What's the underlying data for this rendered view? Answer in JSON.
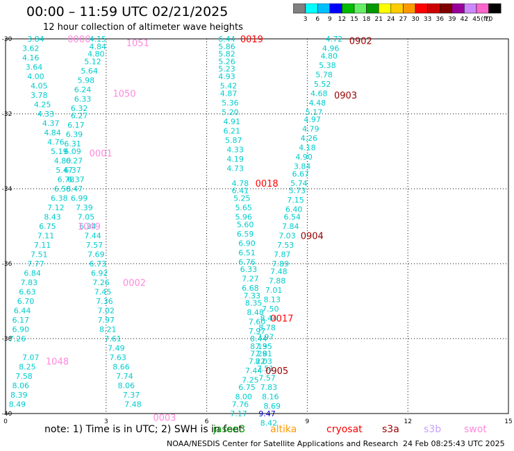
{
  "header": {
    "title": "00:00 – 11:59 UTC 02/21/2025",
    "subtitle": "12 hour collection of altimeter wave heights"
  },
  "colorbar": {
    "unit_label": "(ft)",
    "tick_labels": [
      "3",
      "6",
      "9",
      "12",
      "15",
      "18",
      "21",
      "24",
      "27",
      "30",
      "33",
      "36",
      "39",
      "42",
      "45",
      "70"
    ],
    "colors": [
      "#808080",
      "#00ffff",
      "#00bfff",
      "#0000ff",
      "#00bb00",
      "#66ee66",
      "#009900",
      "#ffff00",
      "#ffcc00",
      "#ff9900",
      "#ff0000",
      "#cc0000",
      "#800000",
      "#990099",
      "#cc88ff",
      "#ff66cc",
      "#000000"
    ]
  },
  "footer": {
    "note": "note: 1) Time is in UTC; 2) SWH is in feet",
    "satellites": [
      {
        "name": "jason3",
        "color": "#009900"
      },
      {
        "name": "altika",
        "color": "#ff9900"
      },
      {
        "name": "cryosat",
        "color": "#ff0000"
      },
      {
        "name": "s3a",
        "color": "#990000"
      },
      {
        "name": "s3b",
        "color": "#c8a0ff"
      },
      {
        "name": "swot",
        "color": "#ff88dd"
      }
    ],
    "credit": "NOAA/NESDIS Center for Satellite Applications and Research",
    "timestamp": "24 Feb 08:25:43 UTC 2025"
  },
  "chart_data": {
    "type": "scatter",
    "xlim": [
      0,
      15
    ],
    "ylim": [
      -40,
      -30
    ],
    "x_ticks": [
      "0",
      "3",
      "6",
      "9",
      "12",
      "15"
    ],
    "y_ticks": [
      "-30",
      "-32",
      "-34",
      "-36",
      "-38",
      "-40"
    ],
    "grid": true,
    "tracks": [
      {
        "series": "swot",
        "color": "#00cccc",
        "labels": [
          {
            "x": 0.9,
            "y": -30.0,
            "v": "3.84"
          },
          {
            "x": 0.75,
            "y": -30.25,
            "v": "3.62"
          },
          {
            "x": 0.75,
            "y": -30.5,
            "v": "4.16"
          },
          {
            "x": 0.85,
            "y": -30.75,
            "v": "3.64"
          },
          {
            "x": 0.9,
            "y": -31.0,
            "v": "4.00"
          },
          {
            "x": 1.0,
            "y": -31.25,
            "v": "4.05"
          },
          {
            "x": 1.0,
            "y": -31.5,
            "v": "3.78"
          },
          {
            "x": 1.1,
            "y": -31.75,
            "v": "4.25"
          },
          {
            "x": 1.2,
            "y": -32.0,
            "v": "4.33"
          },
          {
            "x": 1.35,
            "y": -32.25,
            "v": "4.37"
          },
          {
            "x": 1.4,
            "y": -32.5,
            "v": "4.84"
          },
          {
            "x": 1.5,
            "y": -32.75,
            "v": "4.76"
          },
          {
            "x": 1.6,
            "y": -33.0,
            "v": "5.19"
          },
          {
            "x": 1.7,
            "y": -33.25,
            "v": "4.80"
          },
          {
            "x": 1.75,
            "y": -33.5,
            "v": "5.47"
          },
          {
            "x": 1.8,
            "y": -33.75,
            "v": "6.78"
          },
          {
            "x": 1.7,
            "y": -34.0,
            "v": "6.58"
          },
          {
            "x": 1.6,
            "y": -34.25,
            "v": "6.38"
          },
          {
            "x": 1.5,
            "y": -34.5,
            "v": "7.12"
          },
          {
            "x": 1.4,
            "y": -34.75,
            "v": "8.43"
          },
          {
            "x": 1.25,
            "y": -35.0,
            "v": "6.75"
          },
          {
            "x": 1.2,
            "y": -35.25,
            "v": "7.11"
          },
          {
            "x": 1.1,
            "y": -35.5,
            "v": "7.11"
          },
          {
            "x": 1.0,
            "y": -35.75,
            "v": "7.51"
          },
          {
            "x": 0.9,
            "y": -36.0,
            "v": "7.77"
          },
          {
            "x": 0.8,
            "y": -36.25,
            "v": "6.84"
          },
          {
            "x": 0.7,
            "y": -36.5,
            "v": "7.83"
          },
          {
            "x": 0.65,
            "y": -36.75,
            "v": "6.63"
          },
          {
            "x": 0.6,
            "y": -37.0,
            "v": "6.70"
          },
          {
            "x": 0.5,
            "y": -37.25,
            "v": "6.44"
          },
          {
            "x": 0.45,
            "y": -37.5,
            "v": "6.17"
          },
          {
            "x": 0.45,
            "y": -37.75,
            "v": "6.90"
          },
          {
            "x": 0.35,
            "y": -38.0,
            "v": "7.26"
          },
          {
            "x": 0.75,
            "y": -38.5,
            "v": "7.07"
          },
          {
            "x": 0.65,
            "y": -38.75,
            "v": "8.25"
          },
          {
            "x": 0.55,
            "y": -39.0,
            "v": "7.58"
          },
          {
            "x": 0.45,
            "y": -39.25,
            "v": "8.06"
          },
          {
            "x": 0.4,
            "y": -39.5,
            "v": "8.39"
          },
          {
            "x": 0.35,
            "y": -39.75,
            "v": "8.49"
          }
        ]
      },
      {
        "series": "swot",
        "color": "#00cccc",
        "labels": [
          {
            "x": 2.75,
            "y": -30.0,
            "v": "4.15"
          },
          {
            "x": 2.75,
            "y": -30.2,
            "v": "4.84"
          },
          {
            "x": 2.7,
            "y": -30.4,
            "v": "4.80"
          },
          {
            "x": 2.6,
            "y": -30.6,
            "v": "5.12"
          },
          {
            "x": 2.5,
            "y": -30.85,
            "v": "5.64"
          },
          {
            "x": 2.4,
            "y": -31.1,
            "v": "5.98"
          },
          {
            "x": 2.3,
            "y": -31.35,
            "v": "6.24"
          },
          {
            "x": 2.3,
            "y": -31.6,
            "v": "6.33"
          },
          {
            "x": 2.2,
            "y": -31.85,
            "v": "6.32"
          },
          {
            "x": 2.2,
            "y": -32.05,
            "v": "6.27"
          },
          {
            "x": 2.1,
            "y": -32.3,
            "v": "6.17"
          },
          {
            "x": 2.05,
            "y": -32.55,
            "v": "6.39"
          },
          {
            "x": 2.0,
            "y": -32.8,
            "v": "6.31"
          },
          {
            "x": 2.0,
            "y": -33.0,
            "v": "6.09"
          },
          {
            "x": 2.05,
            "y": -33.25,
            "v": "6.27"
          },
          {
            "x": 2.0,
            "y": -33.5,
            "v": "6.37"
          },
          {
            "x": 2.1,
            "y": -33.75,
            "v": "6.37"
          },
          {
            "x": 2.05,
            "y": -34.0,
            "v": "6.47"
          },
          {
            "x": 2.2,
            "y": -34.25,
            "v": "6.99"
          },
          {
            "x": 2.35,
            "y": -34.5,
            "v": "7.39"
          },
          {
            "x": 2.4,
            "y": -34.75,
            "v": "7.05"
          },
          {
            "x": 2.45,
            "y": -35.0,
            "v": "6.24"
          },
          {
            "x": 2.6,
            "y": -35.25,
            "v": "7.44"
          },
          {
            "x": 2.65,
            "y": -35.5,
            "v": "7.57"
          },
          {
            "x": 2.7,
            "y": -35.75,
            "v": "7.69"
          },
          {
            "x": 2.75,
            "y": -36.0,
            "v": "6.73"
          },
          {
            "x": 2.8,
            "y": -36.25,
            "v": "6.92"
          },
          {
            "x": 2.85,
            "y": -36.5,
            "v": "7.26"
          },
          {
            "x": 2.9,
            "y": -36.75,
            "v": "7.45"
          },
          {
            "x": 2.95,
            "y": -37.0,
            "v": "7.36"
          },
          {
            "x": 3.0,
            "y": -37.25,
            "v": "7.02"
          },
          {
            "x": 3.0,
            "y": -37.5,
            "v": "7.97"
          },
          {
            "x": 3.05,
            "y": -37.75,
            "v": "8.21"
          },
          {
            "x": 3.2,
            "y": -38.0,
            "v": "7.61"
          },
          {
            "x": 3.3,
            "y": -38.25,
            "v": "7.49"
          },
          {
            "x": 3.35,
            "y": -38.5,
            "v": "7.63"
          },
          {
            "x": 3.45,
            "y": -38.75,
            "v": "8.66"
          },
          {
            "x": 3.55,
            "y": -39.0,
            "v": "7.74"
          },
          {
            "x": 3.6,
            "y": -39.25,
            "v": "8.06"
          },
          {
            "x": 3.75,
            "y": -39.5,
            "v": "7.37"
          },
          {
            "x": 3.8,
            "y": -39.75,
            "v": "7.48"
          }
        ]
      },
      {
        "series": "cryosat",
        "color": "#00cccc",
        "labels": [
          {
            "x": 6.6,
            "y": -30.0,
            "v": "6.44"
          },
          {
            "x": 6.6,
            "y": -30.2,
            "v": "5.86"
          },
          {
            "x": 6.6,
            "y": -30.4,
            "v": "5.82"
          },
          {
            "x": 6.6,
            "y": -30.6,
            "v": "5.26"
          },
          {
            "x": 6.6,
            "y": -30.8,
            "v": "5.23"
          },
          {
            "x": 6.6,
            "y": -31.0,
            "v": "4.93"
          },
          {
            "x": 6.65,
            "y": -31.25,
            "v": "5.42"
          },
          {
            "x": 6.65,
            "y": -31.45,
            "v": "4.87"
          },
          {
            "x": 6.7,
            "y": -31.7,
            "v": "5.36"
          },
          {
            "x": 6.7,
            "y": -31.95,
            "v": "5.20"
          },
          {
            "x": 6.75,
            "y": -32.2,
            "v": "4.91"
          },
          {
            "x": 6.75,
            "y": -32.45,
            "v": "6.21"
          },
          {
            "x": 6.8,
            "y": -32.7,
            "v": "5.87"
          },
          {
            "x": 6.85,
            "y": -32.95,
            "v": "4.33"
          },
          {
            "x": 6.85,
            "y": -33.2,
            "v": "4.19"
          },
          {
            "x": 6.85,
            "y": -33.45,
            "v": "4.73"
          },
          {
            "x": 7.0,
            "y": -33.85,
            "v": "4.78"
          },
          {
            "x": 7.0,
            "y": -34.05,
            "v": "6.41"
          },
          {
            "x": 7.05,
            "y": -34.25,
            "v": "5.25"
          },
          {
            "x": 7.1,
            "y": -34.5,
            "v": "5.65"
          },
          {
            "x": 7.1,
            "y": -34.75,
            "v": "5.96"
          },
          {
            "x": 7.15,
            "y": -34.95,
            "v": "5.60"
          },
          {
            "x": 7.15,
            "y": -35.2,
            "v": "6.59"
          },
          {
            "x": 7.2,
            "y": -35.45,
            "v": "6.90"
          },
          {
            "x": 7.2,
            "y": -35.7,
            "v": "6.51"
          },
          {
            "x": 7.2,
            "y": -35.95,
            "v": "6.76"
          },
          {
            "x": 7.25,
            "y": -36.15,
            "v": "6.33"
          },
          {
            "x": 7.3,
            "y": -36.4,
            "v": "7.27"
          },
          {
            "x": 7.3,
            "y": -36.65,
            "v": "6.68"
          },
          {
            "x": 7.35,
            "y": -36.85,
            "v": "7.33"
          },
          {
            "x": 7.4,
            "y": -37.05,
            "v": "8.35"
          },
          {
            "x": 7.45,
            "y": -37.3,
            "v": "8.48"
          },
          {
            "x": 7.5,
            "y": -37.55,
            "v": "7.60"
          },
          {
            "x": 7.5,
            "y": -37.8,
            "v": "7.97"
          },
          {
            "x": 7.55,
            "y": -38.0,
            "v": "8.44"
          },
          {
            "x": 7.55,
            "y": -38.2,
            "v": "8.13"
          },
          {
            "x": 7.55,
            "y": -38.4,
            "v": "7.29"
          },
          {
            "x": 7.5,
            "y": -38.6,
            "v": "7.22"
          },
          {
            "x": 7.4,
            "y": -38.85,
            "v": "7.44"
          },
          {
            "x": 7.3,
            "y": -39.1,
            "v": "7.25"
          },
          {
            "x": 7.2,
            "y": -39.3,
            "v": "6.75"
          },
          {
            "x": 7.1,
            "y": -39.55,
            "v": "8.00"
          },
          {
            "x": 7.0,
            "y": -39.75,
            "v": "7.76"
          },
          {
            "x": 6.95,
            "y": -40.0,
            "v": "7.17"
          }
        ]
      },
      {
        "series": "s3a",
        "color": "#00cccc",
        "labels": [
          {
            "x": 9.8,
            "y": -30.0,
            "v": "4.72"
          },
          {
            "x": 9.7,
            "y": -30.25,
            "v": "4.96"
          },
          {
            "x": 9.65,
            "y": -30.45,
            "v": "4.80"
          },
          {
            "x": 9.6,
            "y": -30.7,
            "v": "5.38"
          },
          {
            "x": 9.5,
            "y": -30.95,
            "v": "5.78"
          },
          {
            "x": 9.45,
            "y": -31.2,
            "v": "5.52"
          },
          {
            "x": 9.35,
            "y": -31.45,
            "v": "4.68"
          },
          {
            "x": 9.3,
            "y": -31.7,
            "v": "4.48"
          },
          {
            "x": 9.2,
            "y": -31.95,
            "v": "5.17"
          },
          {
            "x": 9.15,
            "y": -32.15,
            "v": "4.97"
          },
          {
            "x": 9.1,
            "y": -32.4,
            "v": "4.79"
          },
          {
            "x": 9.05,
            "y": -32.65,
            "v": "4.26"
          },
          {
            "x": 9.0,
            "y": -32.9,
            "v": "4.18"
          },
          {
            "x": 8.9,
            "y": -33.15,
            "v": "4.90"
          },
          {
            "x": 8.85,
            "y": -33.4,
            "v": "3.84"
          },
          {
            "x": 8.8,
            "y": -33.6,
            "v": "6.67"
          },
          {
            "x": 8.75,
            "y": -33.85,
            "v": "5.74"
          },
          {
            "x": 8.7,
            "y": -34.05,
            "v": "5.73"
          },
          {
            "x": 8.65,
            "y": -34.3,
            "v": "7.15"
          },
          {
            "x": 8.6,
            "y": -34.55,
            "v": "6.40"
          },
          {
            "x": 8.55,
            "y": -34.75,
            "v": "6.54"
          },
          {
            "x": 8.5,
            "y": -35.0,
            "v": "7.84"
          },
          {
            "x": 8.4,
            "y": -35.25,
            "v": "7.03"
          },
          {
            "x": 8.35,
            "y": -35.5,
            "v": "7.53"
          },
          {
            "x": 8.25,
            "y": -35.75,
            "v": "7.87"
          },
          {
            "x": 8.2,
            "y": -36.0,
            "v": "7.89"
          },
          {
            "x": 8.15,
            "y": -36.2,
            "v": "7.48"
          },
          {
            "x": 8.1,
            "y": -36.45,
            "v": "7.88"
          },
          {
            "x": 8.0,
            "y": -36.7,
            "v": "7.01"
          },
          {
            "x": 7.95,
            "y": -36.95,
            "v": "8.13"
          },
          {
            "x": 7.9,
            "y": -37.2,
            "v": "7.50"
          },
          {
            "x": 7.85,
            "y": -37.45,
            "v": "8.44"
          },
          {
            "x": 7.8,
            "y": -37.7,
            "v": "8.78"
          },
          {
            "x": 7.75,
            "y": -37.95,
            "v": "7.97"
          },
          {
            "x": 7.7,
            "y": -38.2,
            "v": "7.95"
          },
          {
            "x": 7.7,
            "y": -38.4,
            "v": "7.81"
          },
          {
            "x": 7.7,
            "y": -38.6,
            "v": "8.03"
          },
          {
            "x": 7.75,
            "y": -38.8,
            "v": "7.51"
          },
          {
            "x": 7.8,
            "y": -39.05,
            "v": "7.57"
          },
          {
            "x": 7.85,
            "y": -39.3,
            "v": "7.83"
          },
          {
            "x": 7.9,
            "y": -39.55,
            "v": "8.16"
          },
          {
            "x": 7.95,
            "y": -39.8,
            "v": "8.69"
          },
          {
            "x": 7.85,
            "y": -40.25,
            "v": "8.42"
          }
        ]
      },
      {
        "series": "cryosat",
        "color": "#0000cc",
        "labels": [
          {
            "x": 7.8,
            "y": -40.0,
            "v": "9.47"
          }
        ]
      }
    ],
    "time_labels": [
      {
        "x": 1.85,
        "y": -30.0,
        "v": "0000",
        "color": "#ff88dd"
      },
      {
        "x": 3.6,
        "y": -30.1,
        "v": "1051",
        "color": "#ff88dd"
      },
      {
        "x": 3.2,
        "y": -31.45,
        "v": "1050",
        "color": "#ff88dd"
      },
      {
        "x": 2.5,
        "y": -33.05,
        "v": "0001",
        "color": "#ff88dd"
      },
      {
        "x": 2.15,
        "y": -35.0,
        "v": "1049",
        "color": "#ff88dd"
      },
      {
        "x": 3.5,
        "y": -36.5,
        "v": "0002",
        "color": "#ff88dd"
      },
      {
        "x": 1.2,
        "y": -38.6,
        "v": "1048",
        "color": "#ff88dd"
      },
      {
        "x": 4.4,
        "y": -40.1,
        "v": "0003",
        "color": "#ff88dd"
      },
      {
        "x": 7.0,
        "y": -30.0,
        "v": "0019",
        "color": "#ff0000"
      },
      {
        "x": 7.45,
        "y": -33.85,
        "v": "0018",
        "color": "#ff0000"
      },
      {
        "x": 7.9,
        "y": -37.45,
        "v": "0017",
        "color": "#ff0000"
      },
      {
        "x": 10.25,
        "y": -30.05,
        "v": "0902",
        "color": "#990000"
      },
      {
        "x": 9.8,
        "y": -31.5,
        "v": "0903",
        "color": "#990000"
      },
      {
        "x": 8.8,
        "y": -35.25,
        "v": "0904",
        "color": "#990000"
      },
      {
        "x": 7.75,
        "y": -38.85,
        "v": "0905",
        "color": "#990000"
      }
    ]
  }
}
